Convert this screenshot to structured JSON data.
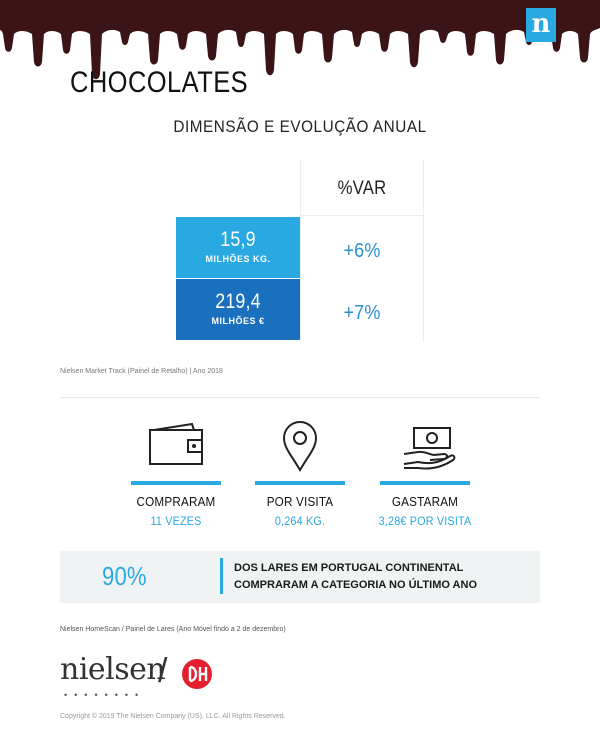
{
  "brand": {
    "logo_letter": "n",
    "accent": "#29a9e1",
    "dark_blue": "#1a6fbe",
    "chocolate": "#3a1416"
  },
  "title": "CHOCOLATES",
  "subtitle": "DIMENSÃO E EVOLUÇÃO ANUAL",
  "table": {
    "var_header": "%VAR",
    "rows": [
      {
        "value": "15,9",
        "unit": "MILHÕES KG.",
        "var": "+6%"
      },
      {
        "value": "219,4",
        "unit": "MILHÕES €",
        "var": "+7%"
      }
    ]
  },
  "source1": "Nielsen Market Track (Painel de Retalho) | Ano 2018",
  "stats": [
    {
      "icon": "wallet-icon",
      "label": "COMPRARAM",
      "value": "11 VEZES"
    },
    {
      "icon": "location-pin-icon",
      "label": "POR VISITA",
      "value": "0,264 KG."
    },
    {
      "icon": "hand-money-icon",
      "label": "GASTARAM",
      "value": "3,28€ POR VISITA"
    }
  ],
  "banner": {
    "percent": "90%",
    "line1": "DOS LARES EM PORTUGAL CONTINENTAL",
    "line2": "COMPRARAM A CATEGORIA NO ÚLTIMO ANO"
  },
  "source2": "Nielsen HomeScan / Painel de Lares (Ano Móvel findo a 2 de dezembro)",
  "footer": {
    "nielsen_logo": "nielsen",
    "separator": "/",
    "copyright": "Copyright © 2019 The Nielsen Company (US), LLC. All Rights Reserved."
  }
}
